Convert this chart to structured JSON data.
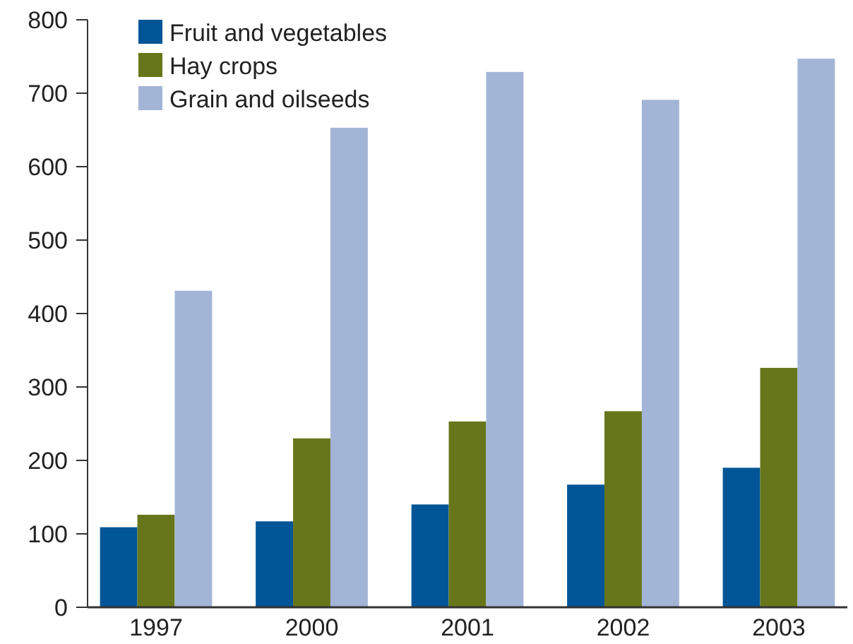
{
  "chart_data": {
    "type": "bar",
    "categories": [
      "1997",
      "2000",
      "2001",
      "2002",
      "2003"
    ],
    "series": [
      {
        "name": "Fruit and vegetables",
        "color": "#005596",
        "values": [
          109,
          117,
          140,
          167,
          190
        ]
      },
      {
        "name": "Hay crops",
        "color": "#67761a",
        "values": [
          126,
          230,
          253,
          267,
          326
        ]
      },
      {
        "name": "Grain and oilseeds",
        "color": "#a3b5d6",
        "values": [
          431,
          653,
          729,
          691,
          747
        ]
      }
    ],
    "ylim": [
      0,
      800
    ],
    "yticks": [
      0,
      100,
      200,
      300,
      400,
      500,
      600,
      700,
      800
    ],
    "grid": false,
    "legend": "top left"
  }
}
